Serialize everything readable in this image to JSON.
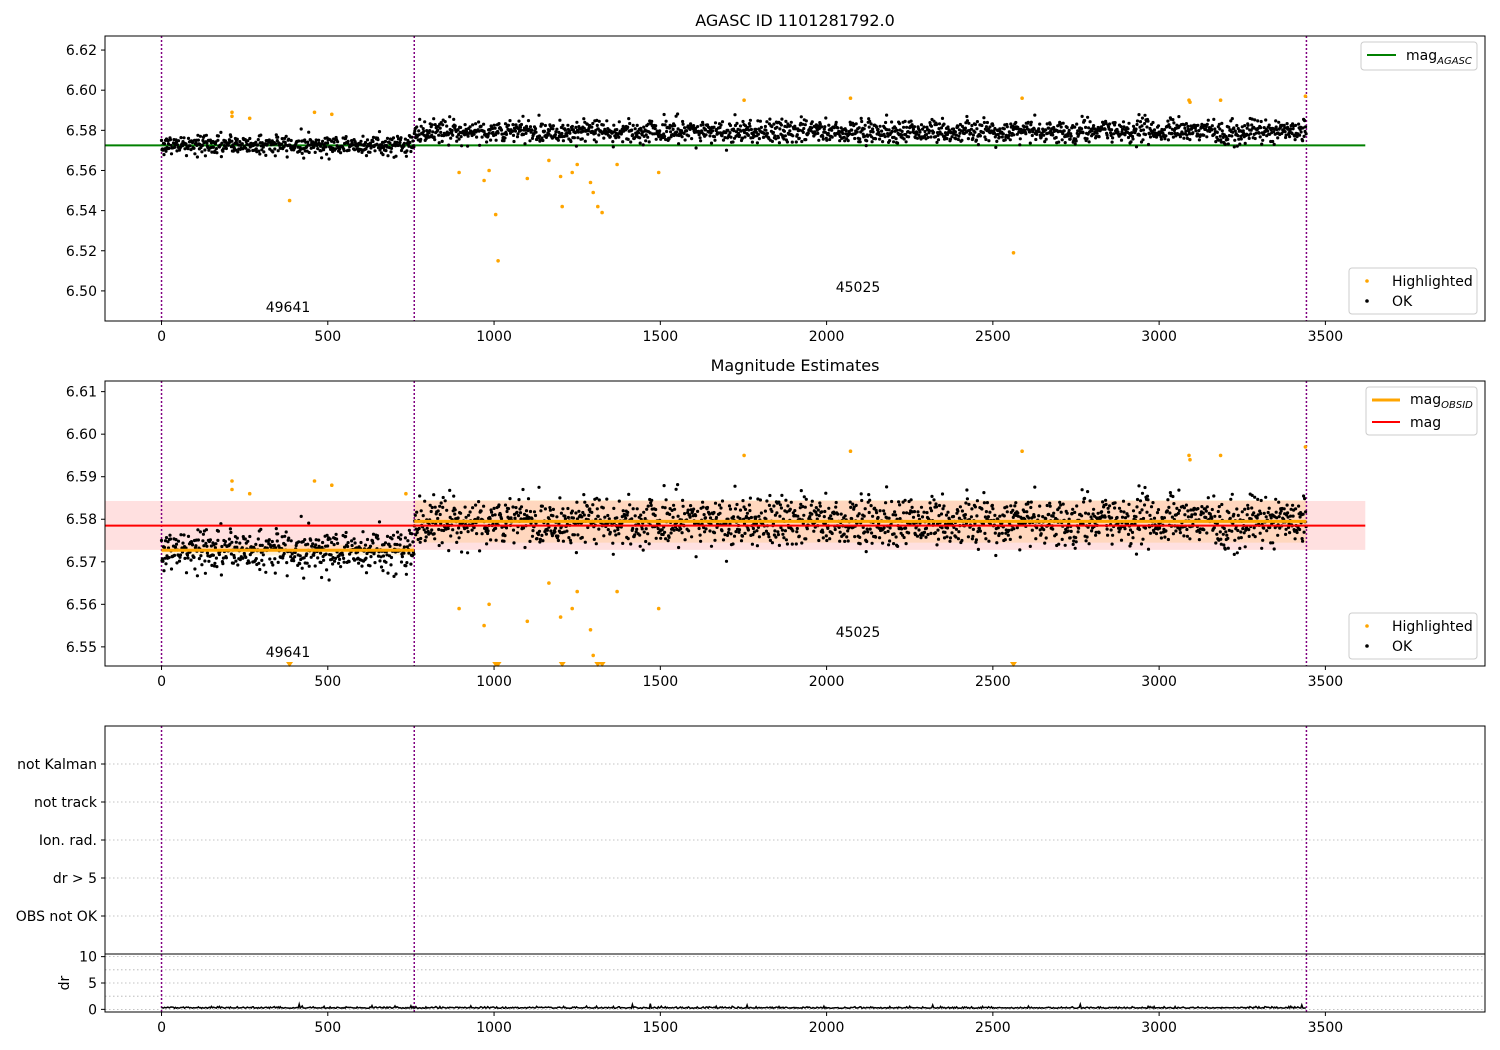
{
  "chart_data": [
    {
      "type": "scatter",
      "title": "AGASC ID 1101281792.0",
      "xlabel": "",
      "ylabel": "",
      "xlim": [
        -170,
        3980
      ],
      "ylim": [
        6.485,
        6.627
      ],
      "x_ticks": [
        "0",
        "500",
        "1000",
        "1500",
        "2000",
        "2500",
        "3000",
        "3500"
      ],
      "y_ticks": [
        "6.50",
        "6.52",
        "6.54",
        "6.56",
        "6.58",
        "6.60",
        "6.62"
      ],
      "observation_boundaries": [
        0,
        760,
        3443
      ],
      "observation_labels": [
        {
          "text": "49641",
          "x": 380,
          "y": 6.491
        },
        {
          "text": "45025",
          "x": 2100,
          "y": 6.501
        }
      ],
      "line_legend": [
        {
          "name": "mag_AGASC",
          "color": "#008000"
        }
      ],
      "marker_legend": [
        {
          "name": "Highlighted",
          "color": "#ffa500"
        },
        {
          "name": "OK",
          "color": "#000000"
        }
      ],
      "series": [
        {
          "name": "mag_AGASC",
          "type": "hline",
          "y": 6.5725,
          "x_range": [
            -170,
            3620
          ],
          "color": "#008000"
        },
        {
          "name": "OK",
          "type": "scatter",
          "color": "#000000",
          "segments": [
            {
              "x_range": [
                0,
                760
              ],
              "center": 6.5727,
              "spread": 0.0045
            },
            {
              "x_range": [
                760,
                3443
              ],
              "center": 6.5795,
              "spread": 0.0052
            }
          ]
        },
        {
          "name": "Highlighted",
          "type": "scatter",
          "color": "#ffa500",
          "points": [
            [
              212,
              6.589
            ],
            [
              212,
              6.587
            ],
            [
              265,
              6.586
            ],
            [
              385,
              6.545
            ],
            [
              460,
              6.589
            ],
            [
              512,
              6.588
            ],
            [
              895,
              6.559
            ],
            [
              970,
              6.555
            ],
            [
              985,
              6.56
            ],
            [
              1005,
              6.538
            ],
            [
              1012,
              6.515
            ],
            [
              1100,
              6.556
            ],
            [
              1165,
              6.565
            ],
            [
              1200,
              6.557
            ],
            [
              1205,
              6.542
            ],
            [
              1235,
              6.559
            ],
            [
              1250,
              6.563
            ],
            [
              1290,
              6.554
            ],
            [
              1298,
              6.549
            ],
            [
              1312,
              6.542
            ],
            [
              1325,
              6.539
            ],
            [
              1370,
              6.563
            ],
            [
              1495,
              6.559
            ],
            [
              1752,
              6.595
            ],
            [
              2072,
              6.596
            ],
            [
              2562,
              6.519
            ],
            [
              2588,
              6.596
            ],
            [
              3090,
              6.595
            ],
            [
              3093,
              6.594
            ],
            [
              3185,
              6.595
            ],
            [
              3440,
              6.597
            ]
          ]
        }
      ]
    },
    {
      "type": "scatter",
      "title": "Magnitude Estimates",
      "xlabel": "",
      "ylabel": "",
      "xlim": [
        -170,
        3980
      ],
      "ylim": [
        6.5455,
        6.6125
      ],
      "x_ticks": [
        "0",
        "500",
        "1000",
        "1500",
        "2000",
        "2500",
        "3000",
        "3500"
      ],
      "y_ticks": [
        "6.55",
        "6.56",
        "6.57",
        "6.58",
        "6.59",
        "6.60",
        "6.61"
      ],
      "observation_boundaries": [
        0,
        760,
        3443
      ],
      "observation_labels": [
        {
          "text": "49641",
          "x": 380,
          "y": 6.5475
        },
        {
          "text": "45025",
          "x": 2100,
          "y": 6.5525
        }
      ],
      "line_legend": [
        {
          "name": "mag_OBSID",
          "color": "#ffa500"
        },
        {
          "name": "mag",
          "color": "#ff0000"
        }
      ],
      "marker_legend": [
        {
          "name": "Highlighted",
          "color": "#ffa500"
        },
        {
          "name": "OK",
          "color": "#000000"
        }
      ],
      "bands": [
        {
          "name": "mag band",
          "color": "#ff0000",
          "opacity": 0.12,
          "x_range": [
            -170,
            3620
          ],
          "y_range": [
            6.5728,
            6.5843
          ]
        },
        {
          "name": "mag_OBSID band 49641",
          "color": "#ffa500",
          "opacity": 0.15,
          "x_range": [
            0,
            760
          ],
          "y_range": [
            6.5715,
            6.574
          ]
        },
        {
          "name": "mag_OBSID band 45025",
          "color": "#ffa500",
          "opacity": 0.15,
          "x_range": [
            760,
            3443
          ],
          "y_range": [
            6.5745,
            6.5845
          ]
        }
      ],
      "series": [
        {
          "name": "mag",
          "type": "hline",
          "y": 6.5785,
          "x_range": [
            -170,
            3620
          ],
          "color": "#ff0000"
        },
        {
          "name": "mag_OBSID",
          "type": "steps",
          "color": "#ffa500",
          "steps": [
            {
              "x_range": [
                0,
                760
              ],
              "y": 6.5727
            },
            {
              "x_range": [
                760,
                3443
              ],
              "y": 6.5795
            }
          ]
        },
        {
          "name": "OK",
          "type": "scatter",
          "color": "#000000",
          "segments": [
            {
              "x_range": [
                0,
                760
              ],
              "center": 6.5727,
              "spread": 0.0045
            },
            {
              "x_range": [
                760,
                3443
              ],
              "center": 6.5795,
              "spread": 0.0052
            }
          ]
        },
        {
          "name": "Highlighted",
          "type": "scatter",
          "color": "#ffa500",
          "points": [
            [
              212,
              6.589
            ],
            [
              212,
              6.587
            ],
            [
              265,
              6.586
            ],
            [
              460,
              6.589
            ],
            [
              512,
              6.588
            ],
            [
              735,
              6.586
            ],
            [
              895,
              6.559
            ],
            [
              970,
              6.555
            ],
            [
              985,
              6.56
            ],
            [
              1100,
              6.556
            ],
            [
              1165,
              6.565
            ],
            [
              1200,
              6.557
            ],
            [
              1235,
              6.559
            ],
            [
              1250,
              6.563
            ],
            [
              1290,
              6.554
            ],
            [
              1298,
              6.548
            ],
            [
              1370,
              6.563
            ],
            [
              1495,
              6.559
            ],
            [
              1752,
              6.595
            ],
            [
              2072,
              6.596
            ],
            [
              2588,
              6.596
            ],
            [
              3090,
              6.595
            ],
            [
              3093,
              6.594
            ],
            [
              3185,
              6.595
            ],
            [
              3440,
              6.597
            ]
          ]
        },
        {
          "name": "Highlighted (below range)",
          "type": "scatter",
          "marker": "triangle-down",
          "color": "#ffa500",
          "points": [
            [
              385,
              6.5455
            ],
            [
              1005,
              6.5455
            ],
            [
              1012,
              6.5455
            ],
            [
              1205,
              6.5455
            ],
            [
              1312,
              6.5455
            ],
            [
              1325,
              6.5455
            ],
            [
              2562,
              6.5455
            ]
          ]
        }
      ]
    },
    {
      "type": "scatter",
      "title": "",
      "xlim": [
        -170,
        3980
      ],
      "categories": [
        "not Kalman",
        "not track",
        "Ion. rad.",
        "dr > 5",
        "OBS not OK"
      ],
      "values": [],
      "grid": "horizontal dotted",
      "observation_boundaries": [
        0,
        760,
        3443
      ]
    },
    {
      "type": "line",
      "title": "",
      "xlabel": "",
      "ylabel": "dr",
      "xlim": [
        -170,
        3980
      ],
      "ylim": [
        -0.5,
        10.5
      ],
      "x_ticks": [
        "0",
        "500",
        "1000",
        "1500",
        "2000",
        "2500",
        "3000",
        "3500"
      ],
      "y_ticks": [
        "0",
        "5",
        "10"
      ],
      "observation_boundaries": [
        0,
        760,
        3443
      ],
      "series": [
        {
          "name": "dr",
          "type": "line",
          "color": "#000000",
          "x_range": [
            0,
            3443
          ],
          "baseline": 0.2,
          "spread": 0.3
        }
      ]
    }
  ],
  "legend_labels": {
    "mag_agasc_base": "mag",
    "mag_agasc_sub": "AGASC",
    "mag_obsid_base": "mag",
    "mag_obsid_sub": "OBSID",
    "mag": "mag",
    "highlighted": "Highlighted",
    "ok": "OK"
  },
  "colors": {
    "ok": "#000000",
    "highlighted": "#ffa500",
    "mag_agasc": "#008000",
    "mag_obsid": "#ffa500",
    "mag": "#ff0000",
    "obs_boundary": "#800080"
  }
}
